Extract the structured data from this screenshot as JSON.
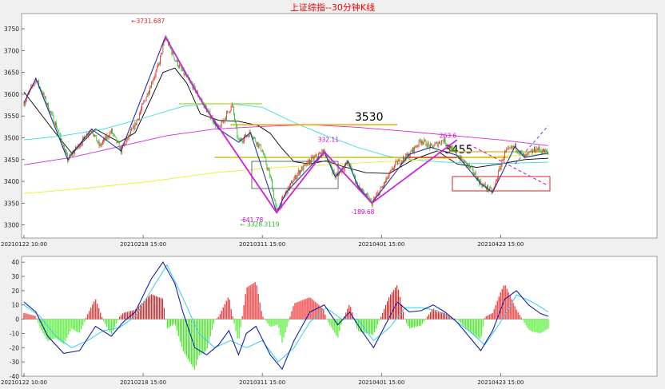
{
  "chart_data": [
    {
      "type": "candlestick",
      "title": "上证综指--30分钟K线",
      "ylim": [
        3270,
        3785
      ],
      "yticks": [
        3300,
        3350,
        3400,
        3450,
        3500,
        3550,
        3600,
        3650,
        3700,
        3750
      ],
      "x_tick_labels": [
        "20210122 10:00",
        "20210218 15:00",
        "20210311 15:00",
        "20210401 15:00",
        "20210423 15:00"
      ],
      "x_tick_index": [
        0,
        150,
        300,
        450,
        600
      ],
      "n_bars": 601,
      "price_path": [
        [
          0,
          3580
        ],
        [
          15,
          3636
        ],
        [
          40,
          3530
        ],
        [
          55,
          3450
        ],
        [
          85,
          3520
        ],
        [
          95,
          3480
        ],
        [
          110,
          3515
        ],
        [
          122,
          3470
        ],
        [
          140,
          3530
        ],
        [
          155,
          3600
        ],
        [
          170,
          3670
        ],
        [
          178,
          3731.687
        ],
        [
          190,
          3680
        ],
        [
          200,
          3650
        ],
        [
          212,
          3620
        ],
        [
          228,
          3570
        ],
        [
          245,
          3520
        ],
        [
          262,
          3575
        ],
        [
          270,
          3490
        ],
        [
          285,
          3512
        ],
        [
          300,
          3470
        ],
        [
          312,
          3395
        ],
        [
          318,
          3328.31
        ],
        [
          330,
          3375
        ],
        [
          345,
          3420
        ],
        [
          362,
          3450
        ],
        [
          378,
          3468
        ],
        [
          392,
          3410
        ],
        [
          408,
          3445
        ],
        [
          420,
          3390
        ],
        [
          438,
          3350
        ],
        [
          452,
          3390
        ],
        [
          468,
          3440
        ],
        [
          485,
          3462
        ],
        [
          500,
          3495
        ],
        [
          512,
          3478
        ],
        [
          528,
          3495
        ],
        [
          545,
          3460
        ],
        [
          562,
          3430
        ],
        [
          575,
          3395
        ],
        [
          590,
          3375
        ],
        [
          605,
          3465
        ],
        [
          618,
          3480
        ],
        [
          630,
          3455
        ],
        [
          645,
          3475
        ],
        [
          660,
          3465
        ]
      ],
      "ma_lines": [
        {
          "color": "#000000",
          "points": [
            [
              0,
              3605
            ],
            [
              40,
              3510
            ],
            [
              60,
              3465
            ],
            [
              90,
              3520
            ],
            [
              120,
              3490
            ],
            [
              140,
              3512
            ],
            [
              160,
              3590
            ],
            [
              175,
              3650
            ],
            [
              190,
              3660
            ],
            [
              205,
              3625
            ],
            [
              222,
              3555
            ],
            [
              245,
              3540
            ],
            [
              270,
              3538
            ],
            [
              295,
              3528
            ],
            [
              310,
              3510
            ],
            [
              325,
              3475
            ],
            [
              340,
              3445
            ],
            [
              360,
              3440
            ],
            [
              380,
              3447
            ],
            [
              400,
              3435
            ],
            [
              430,
              3420
            ],
            [
              460,
              3418
            ],
            [
              490,
              3450
            ],
            [
              520,
              3470
            ],
            [
              545,
              3440
            ],
            [
              570,
              3432
            ],
            [
              600,
              3440
            ],
            [
              630,
              3450
            ],
            [
              660,
              3453
            ]
          ]
        },
        {
          "color": "#33dddd",
          "points": [
            [
              0,
              3495
            ],
            [
              50,
              3505
            ],
            [
              100,
              3520
            ],
            [
              150,
              3545
            ],
            [
              200,
              3572
            ],
            [
              230,
              3578
            ],
            [
              260,
              3578
            ],
            [
              300,
              3570
            ],
            [
              340,
              3535
            ],
            [
              380,
              3505
            ],
            [
              420,
              3478
            ],
            [
              460,
              3457
            ],
            [
              500,
              3448
            ],
            [
              540,
              3443
            ],
            [
              580,
              3441
            ],
            [
              620,
              3442
            ],
            [
              660,
              3444
            ]
          ]
        },
        {
          "color": "#dd22dd",
          "points": [
            [
              0,
              3438
            ],
            [
              60,
              3455
            ],
            [
              120,
              3480
            ],
            [
              180,
              3505
            ],
            [
              240,
              3520
            ],
            [
              300,
              3526
            ],
            [
              360,
              3530
            ],
            [
              420,
              3524
            ],
            [
              480,
              3515
            ],
            [
              540,
              3505
            ],
            [
              600,
              3495
            ],
            [
              660,
              3482
            ]
          ]
        },
        {
          "color": "#eeee22",
          "points": [
            [
              0,
              3372
            ],
            [
              80,
              3385
            ],
            [
              160,
              3400
            ],
            [
              240,
              3420
            ],
            [
              320,
              3432
            ],
            [
              400,
              3440
            ],
            [
              480,
              3448
            ],
            [
              560,
              3455
            ],
            [
              660,
              3462
            ]
          ]
        }
      ],
      "zigzag_blue": [
        [
          0,
          3580
        ],
        [
          15,
          3636
        ],
        [
          55,
          3450
        ],
        [
          85,
          3520
        ],
        [
          122,
          3470
        ],
        [
          178,
          3731.687
        ],
        [
          212,
          3620
        ],
        [
          245,
          3520
        ],
        [
          270,
          3490
        ],
        [
          285,
          3512
        ],
        [
          318,
          3328.31
        ],
        [
          330,
          3375
        ],
        [
          378,
          3468
        ],
        [
          392,
          3410
        ],
        [
          408,
          3445
        ],
        [
          420,
          3390
        ],
        [
          438,
          3350
        ],
        [
          485,
          3462
        ],
        [
          512,
          3478
        ],
        [
          545,
          3460
        ],
        [
          575,
          3395
        ],
        [
          590,
          3375
        ],
        [
          618,
          3480
        ],
        [
          630,
          3455
        ],
        [
          660,
          3465
        ]
      ],
      "zigzag_magenta": [
        [
          178,
          3731.687
        ],
        [
          228,
          3570
        ],
        [
          318,
          3328.31
        ],
        [
          378,
          3468
        ],
        [
          438,
          3350
        ],
        [
          545,
          3495
        ]
      ],
      "support_lines": [
        {
          "y": 3530,
          "x0": 260,
          "x1": 470,
          "color": "#eeaa00",
          "label": "3530"
        },
        {
          "y": 3455,
          "x0": 240,
          "x1": 610,
          "color": "#ccbb00",
          "label": "3455"
        },
        {
          "y": 3578,
          "x0": 195,
          "x1": 300,
          "color": "#aadd44"
        },
        {
          "y": 3455,
          "x0": 480,
          "x1": 545,
          "color": "#dd3333"
        },
        {
          "y": 3468,
          "x0": 520,
          "x1": 660,
          "color": "#ddbb22"
        }
      ],
      "annotations": [
        {
          "text": "←3731.687",
          "x": 135,
          "y": 3763,
          "color": "#dd2222"
        },
        {
          "text": "332.11",
          "x": 370,
          "y": 3491,
          "color": "#cc00cc"
        },
        {
          "text": "263.6",
          "x": 523,
          "y": 3500,
          "color": "#cc00cc"
        },
        {
          "text": "-641.78",
          "x": 272,
          "y": 3307,
          "color": "#cc00cc"
        },
        {
          "text": "← 3328.3119",
          "x": 272,
          "y": 3297,
          "color": "#22bb22"
        },
        {
          "text": "-189.68",
          "x": 412,
          "y": 3325,
          "color": "#cc00cc"
        }
      ]
    },
    {
      "type": "bar",
      "ylim": [
        -40,
        44
      ],
      "yticks": [
        -40,
        -30,
        -20,
        -10,
        0,
        10,
        20,
        30,
        40
      ],
      "x_tick_labels": [
        "20210122 10:00",
        "20210218 15:00",
        "20210311 15:00",
        "20210401 15:00",
        "20210423 15:00"
      ],
      "x_tick_index": [
        0,
        150,
        300,
        450,
        600
      ],
      "dif_path": [
        [
          0,
          12
        ],
        [
          15,
          5
        ],
        [
          30,
          -12
        ],
        [
          50,
          -24
        ],
        [
          70,
          -22
        ],
        [
          90,
          -5
        ],
        [
          110,
          -12
        ],
        [
          125,
          -2
        ],
        [
          140,
          5
        ],
        [
          160,
          28
        ],
        [
          175,
          40
        ],
        [
          190,
          25
        ],
        [
          200,
          5
        ],
        [
          215,
          -20
        ],
        [
          230,
          -25
        ],
        [
          245,
          -18
        ],
        [
          258,
          -8
        ],
        [
          270,
          -25
        ],
        [
          280,
          -10
        ],
        [
          292,
          -5
        ],
        [
          310,
          -25
        ],
        [
          325,
          -35
        ],
        [
          340,
          -15
        ],
        [
          360,
          5
        ],
        [
          378,
          10
        ],
        [
          395,
          -4
        ],
        [
          410,
          5
        ],
        [
          425,
          -8
        ],
        [
          440,
          -20
        ],
        [
          455,
          -4
        ],
        [
          470,
          12
        ],
        [
          485,
          5
        ],
        [
          500,
          6
        ],
        [
          515,
          10
        ],
        [
          530,
          5
        ],
        [
          545,
          -2
        ],
        [
          560,
          -12
        ],
        [
          575,
          -22
        ],
        [
          590,
          -8
        ],
        [
          605,
          14
        ],
        [
          620,
          20
        ],
        [
          635,
          10
        ],
        [
          650,
          4
        ],
        [
          660,
          2
        ]
      ],
      "dea_path": [
        [
          0,
          10
        ],
        [
          20,
          2
        ],
        [
          40,
          -12
        ],
        [
          60,
          -20
        ],
        [
          80,
          -15
        ],
        [
          100,
          -8
        ],
        [
          120,
          -6
        ],
        [
          140,
          2
        ],
        [
          160,
          20
        ],
        [
          180,
          38
        ],
        [
          200,
          15
        ],
        [
          220,
          -10
        ],
        [
          240,
          -20
        ],
        [
          260,
          -15
        ],
        [
          280,
          -20
        ],
        [
          300,
          -15
        ],
        [
          320,
          -30
        ],
        [
          340,
          -20
        ],
        [
          360,
          -2
        ],
        [
          380,
          8
        ],
        [
          400,
          0
        ],
        [
          420,
          0
        ],
        [
          440,
          -15
        ],
        [
          460,
          -6
        ],
        [
          480,
          8
        ],
        [
          500,
          8
        ],
        [
          520,
          6
        ],
        [
          540,
          0
        ],
        [
          560,
          -8
        ],
        [
          580,
          -18
        ],
        [
          600,
          -2
        ],
        [
          620,
          17
        ],
        [
          640,
          12
        ],
        [
          660,
          5
        ]
      ],
      "positive_color": "#ee2222",
      "negative_color": "#44ee22"
    }
  ]
}
